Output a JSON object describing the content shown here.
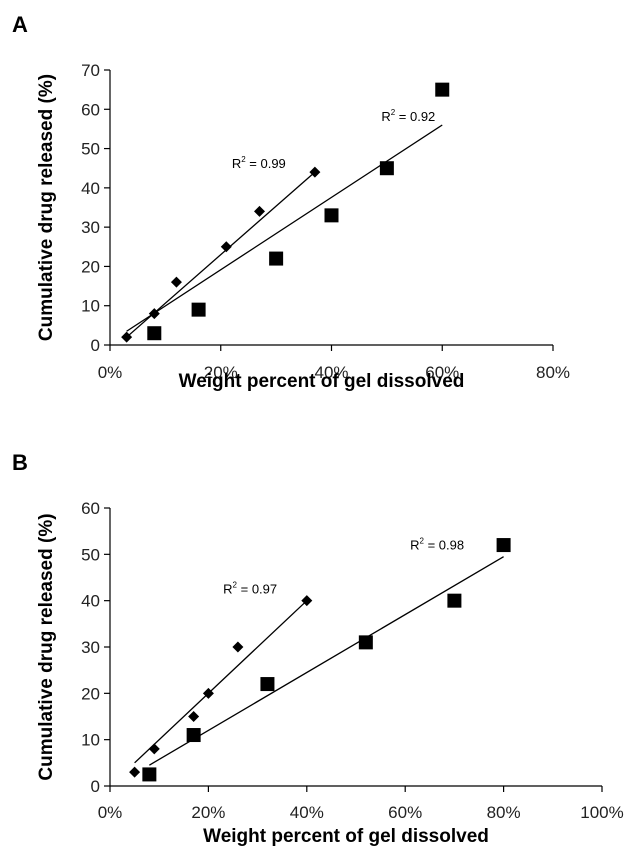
{
  "chart_data": [
    {
      "panel": "A",
      "type": "scatter",
      "title": "",
      "xlabel": "Weight percent of gel dissolved",
      "ylabel": "Cumulative drug released (%)",
      "xlim": [
        0,
        0.8
      ],
      "ylim": [
        0,
        70
      ],
      "x_ticks": [
        0,
        0.2,
        0.4,
        0.6,
        0.8
      ],
      "x_tick_labels": [
        "0%",
        "20%",
        "40%",
        "60%",
        "80%"
      ],
      "y_ticks": [
        0,
        10,
        20,
        30,
        40,
        50,
        60,
        70
      ],
      "y_tick_labels": [
        "0",
        "10",
        "20",
        "30",
        "40",
        "50",
        "60",
        "70"
      ],
      "grid": false,
      "legend": "none",
      "series": [
        {
          "marker": "diamond",
          "points": [
            [
              0.03,
              2
            ],
            [
              0.08,
              8
            ],
            [
              0.12,
              16
            ],
            [
              0.21,
              25
            ],
            [
              0.27,
              34
            ],
            [
              0.37,
              44
            ]
          ],
          "fit": {
            "x1": 0.03,
            "y1": 2,
            "x2": 0.37,
            "y2": 44
          },
          "annotation": {
            "text": "R",
            "sup": "2",
            "tail": " = 0.99",
            "x": 0.22,
            "y": 45
          }
        },
        {
          "marker": "square",
          "points": [
            [
              0.08,
              3
            ],
            [
              0.16,
              9
            ],
            [
              0.3,
              22
            ],
            [
              0.4,
              33
            ],
            [
              0.5,
              45
            ],
            [
              0.6,
              65
            ]
          ],
          "fit": {
            "x1": 0.03,
            "y1": 3.5,
            "x2": 0.6,
            "y2": 56
          },
          "annotation": {
            "text": "R",
            "sup": "2",
            "tail": " = 0.92",
            "x": 0.49,
            "y": 57
          }
        }
      ]
    },
    {
      "panel": "B",
      "type": "scatter",
      "title": "",
      "xlabel": "Weight percent of gel dissolved",
      "ylabel": "Cumulative drug released (%)",
      "xlim": [
        0,
        1.0
      ],
      "ylim": [
        0,
        60
      ],
      "x_ticks": [
        0,
        0.2,
        0.4,
        0.6,
        0.8,
        1.0
      ],
      "x_tick_labels": [
        "0%",
        "20%",
        "40%",
        "60%",
        "80%",
        "100%"
      ],
      "y_ticks": [
        0,
        10,
        20,
        30,
        40,
        50,
        60
      ],
      "y_tick_labels": [
        "0",
        "10",
        "20",
        "30",
        "40",
        "50",
        "60"
      ],
      "grid": false,
      "legend": "none",
      "series": [
        {
          "marker": "diamond",
          "points": [
            [
              0.05,
              3
            ],
            [
              0.09,
              8
            ],
            [
              0.17,
              15
            ],
            [
              0.2,
              20
            ],
            [
              0.26,
              30
            ],
            [
              0.4,
              40
            ]
          ],
          "fit": {
            "x1": 0.05,
            "y1": 5,
            "x2": 0.4,
            "y2": 40
          },
          "annotation": {
            "text": "R",
            "sup": "2",
            "tail": " = 0.97",
            "x": 0.23,
            "y": 41.5
          }
        },
        {
          "marker": "square",
          "points": [
            [
              0.08,
              2.5
            ],
            [
              0.17,
              11
            ],
            [
              0.32,
              22
            ],
            [
              0.52,
              31
            ],
            [
              0.7,
              40
            ],
            [
              0.8,
              52
            ]
          ],
          "fit": {
            "x1": 0.08,
            "y1": 4.5,
            "x2": 0.8,
            "y2": 49.5
          },
          "annotation": {
            "text": "R",
            "sup": "2",
            "tail": " = 0.98",
            "x": 0.61,
            "y": 51
          }
        }
      ]
    }
  ],
  "panels_meta": [
    {
      "letter": "A"
    },
    {
      "letter": "B"
    }
  ]
}
